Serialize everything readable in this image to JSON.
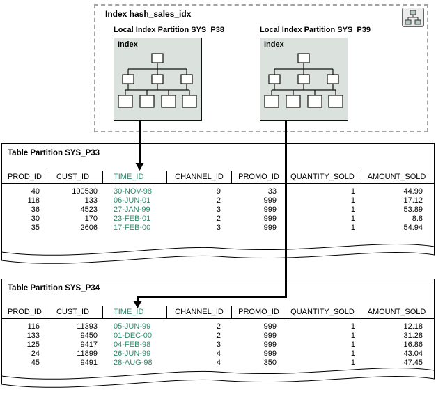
{
  "colors": {
    "time_id_green": "#2d8c6e",
    "index_box_fill": "#dbe2de",
    "dashed_border": "#a3a3a3",
    "arrow_black": "#000000"
  },
  "index_group": {
    "title": "Index hash_sales_idx",
    "icon": "cluster-icon",
    "partitions": [
      {
        "label": "Local Index Partition SYS_P38",
        "box_title": "Index"
      },
      {
        "label": "Local Index Partition SYS_P39",
        "box_title": "Index"
      }
    ]
  },
  "tables": [
    {
      "title": "Table Partition SYS_P33",
      "columns": [
        "PROD_ID",
        "CUST_ID",
        "TIME_ID",
        "CHANNEL_ID",
        "PROMO_ID",
        "QUANTITY_SOLD",
        "AMOUNT_SOLD"
      ],
      "rows": [
        [
          "40",
          "100530",
          "30-NOV-98",
          "9",
          "33",
          "1",
          "44.99"
        ],
        [
          "118",
          "133",
          "06-JUN-01",
          "2",
          "999",
          "1",
          "17.12"
        ],
        [
          "36",
          "4523",
          "27-JAN-99",
          "3",
          "999",
          "1",
          "53.89"
        ],
        [
          "30",
          "170",
          "23-FEB-01",
          "2",
          "999",
          "1",
          "8.8"
        ],
        [
          "35",
          "2606",
          "17-FEB-00",
          "3",
          "999",
          "1",
          "54.94"
        ]
      ]
    },
    {
      "title": "Table Partition SYS_P34",
      "columns": [
        "PROD_ID",
        "CUST_ID",
        "TIME_ID",
        "CHANNEL_ID",
        "PROMO_ID",
        "QUANTITY_SOLD",
        "AMOUNT_SOLD"
      ],
      "rows": [
        [
          "116",
          "11393",
          "05-JUN-99",
          "2",
          "999",
          "1",
          "12.18"
        ],
        [
          "133",
          "9450",
          "01-DEC-00",
          "2",
          "999",
          "1",
          "31.28"
        ],
        [
          "125",
          "9417",
          "04-FEB-98",
          "3",
          "999",
          "1",
          "16.86"
        ],
        [
          "24",
          "11899",
          "26-JUN-99",
          "4",
          "999",
          "1",
          "43.04"
        ],
        [
          "45",
          "9491",
          "28-AUG-98",
          "4",
          "350",
          "1",
          "47.45"
        ]
      ]
    }
  ]
}
